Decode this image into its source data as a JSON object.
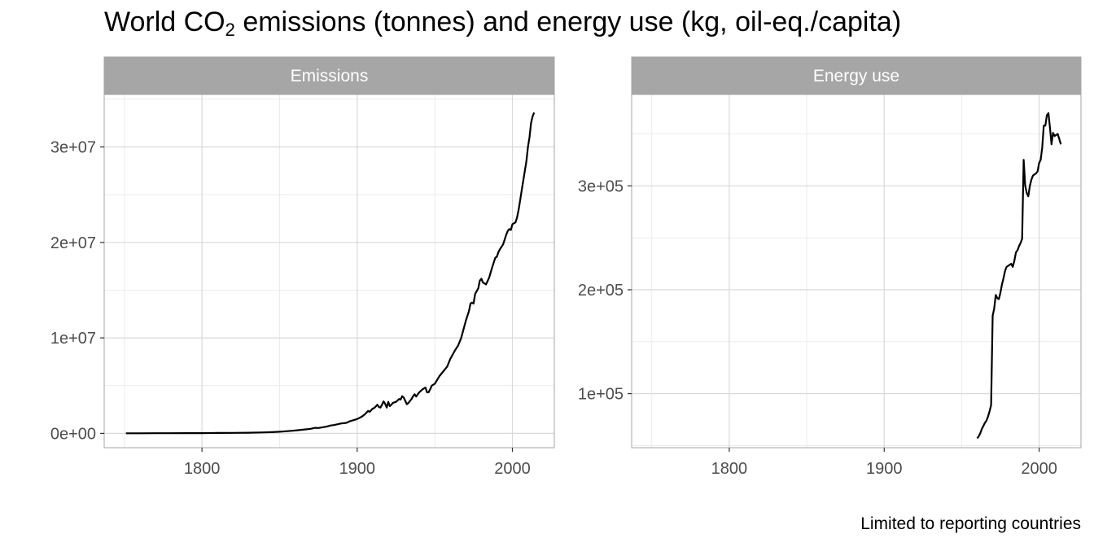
{
  "title": {
    "prefix": "World  CO",
    "sub": "2",
    "suffix": "  emissions (tonnes) and energy use (kg, oil-eq./capita)"
  },
  "caption": "Limited to reporting countries",
  "colors": {
    "strip": "#a6a6a6",
    "panel_border": "#b3b3b3",
    "grid_major": "#d9d9d9",
    "grid_minor": "#ebebeb",
    "line": "#000000",
    "tick_text": "#4d4d4d"
  },
  "chart_data": [
    {
      "type": "line",
      "panel": "Emissions",
      "xlim": [
        1737,
        2027
      ],
      "ylim": [
        -1500000,
        35500000
      ],
      "x_ticks": [
        1800,
        1900,
        2000
      ],
      "x_tick_labels": [
        "1800",
        "1900",
        "2000"
      ],
      "y_ticks": [
        0,
        10000000,
        20000000,
        30000000
      ],
      "y_tick_labels": [
        "0e+00",
        "1e+07",
        "2e+07",
        "3e+07"
      ],
      "grid": true,
      "x": [
        1751,
        1760,
        1770,
        1780,
        1790,
        1800,
        1810,
        1820,
        1830,
        1840,
        1845,
        1850,
        1855,
        1860,
        1865,
        1870,
        1873,
        1875,
        1880,
        1883,
        1885,
        1890,
        1893,
        1895,
        1900,
        1903,
        1905,
        1907,
        1908,
        1910,
        1911,
        1913,
        1914,
        1915,
        1916,
        1917,
        1918,
        1919,
        1920,
        1921,
        1922,
        1923,
        1925,
        1927,
        1928,
        1929,
        1930,
        1931,
        1932,
        1933,
        1934,
        1935,
        1936,
        1937,
        1938,
        1939,
        1940,
        1942,
        1944,
        1945,
        1946,
        1947,
        1948,
        1950,
        1953,
        1955,
        1958,
        1960,
        1963,
        1965,
        1967,
        1968,
        1970,
        1972,
        1973,
        1974,
        1975,
        1976,
        1978,
        1979,
        1980,
        1981,
        1983,
        1985,
        1987,
        1988,
        1989,
        1990,
        1991,
        1992,
        1994,
        1996,
        1997,
        1998,
        1999,
        2000,
        2002,
        2003,
        2004,
        2005,
        2006,
        2007,
        2008,
        2009,
        2010,
        2011,
        2012,
        2013,
        2014
      ],
      "y": [
        10000,
        12000,
        15000,
        20000,
        25000,
        30000,
        40000,
        50000,
        70000,
        100000,
        130000,
        170000,
        230000,
        300000,
        380000,
        480000,
        580000,
        560000,
        700000,
        830000,
        870000,
        1050000,
        1100000,
        1250000,
        1500000,
        1750000,
        2000000,
        2350000,
        2250000,
        2600000,
        2650000,
        3000000,
        2750000,
        2700000,
        3000000,
        3350000,
        3100000,
        2700000,
        3300000,
        2850000,
        3000000,
        3200000,
        3300000,
        3600000,
        3550000,
        3900000,
        3750000,
        3400000,
        3050000,
        3200000,
        3400000,
        3600000,
        3900000,
        4100000,
        3850000,
        4100000,
        4300000,
        4600000,
        4800000,
        4300000,
        4300000,
        4600000,
        5000000,
        5200000,
        6000000,
        6400000,
        7000000,
        7800000,
        8700000,
        9200000,
        10000000,
        10600000,
        11800000,
        12800000,
        13600000,
        13700000,
        13600000,
        14600000,
        15200000,
        16000000,
        16200000,
        15800000,
        15600000,
        16300000,
        17400000,
        17900000,
        18400000,
        18500000,
        19000000,
        19300000,
        19800000,
        20800000,
        21200000,
        21400000,
        21300000,
        21900000,
        22100000,
        22600000,
        23400000,
        24400000,
        25500000,
        26500000,
        27500000,
        28500000,
        30000000,
        31000000,
        32500000,
        33200000,
        33600000
      ]
    },
    {
      "type": "line",
      "panel": "Energy use",
      "xlim": [
        1737,
        2027
      ],
      "ylim": [
        48000,
        388000
      ],
      "x_ticks": [
        1800,
        1900,
        2000
      ],
      "x_tick_labels": [
        "1800",
        "1900",
        "2000"
      ],
      "y_ticks": [
        100000,
        200000,
        300000
      ],
      "y_tick_labels": [
        "1e+05",
        "2e+05",
        "3e+05"
      ],
      "grid": true,
      "x": [
        1960,
        1961,
        1962,
        1963,
        1964,
        1965,
        1966,
        1967,
        1968,
        1969,
        1970,
        1971,
        1972,
        1973,
        1974,
        1975,
        1976,
        1977,
        1978,
        1979,
        1980,
        1981,
        1982,
        1983,
        1984,
        1985,
        1986,
        1987,
        1988,
        1989,
        1990,
        1991,
        1992,
        1993,
        1994,
        1995,
        1996,
        1997,
        1998,
        1999,
        2000,
        2001,
        2002,
        2003,
        2004,
        2005,
        2006,
        2007,
        2008,
        2009,
        2010,
        2011,
        2012,
        2013,
        2014
      ],
      "y": [
        57000,
        59000,
        62000,
        66000,
        69000,
        72000,
        74000,
        78000,
        83000,
        89000,
        175000,
        182000,
        195000,
        192000,
        191000,
        197000,
        205000,
        211000,
        218000,
        222000,
        223000,
        224000,
        225000,
        222000,
        228000,
        236000,
        238000,
        242000,
        245000,
        249000,
        325000,
        300000,
        293000,
        290000,
        300000,
        306000,
        310000,
        311000,
        312000,
        314000,
        322000,
        325000,
        337000,
        358000,
        358000,
        368000,
        370000,
        356000,
        340000,
        351000,
        348000,
        349000,
        350000,
        345000,
        340000
      ]
    }
  ],
  "panels": [
    {
      "strip_label": "Emissions"
    },
    {
      "strip_label": "Energy use"
    }
  ]
}
